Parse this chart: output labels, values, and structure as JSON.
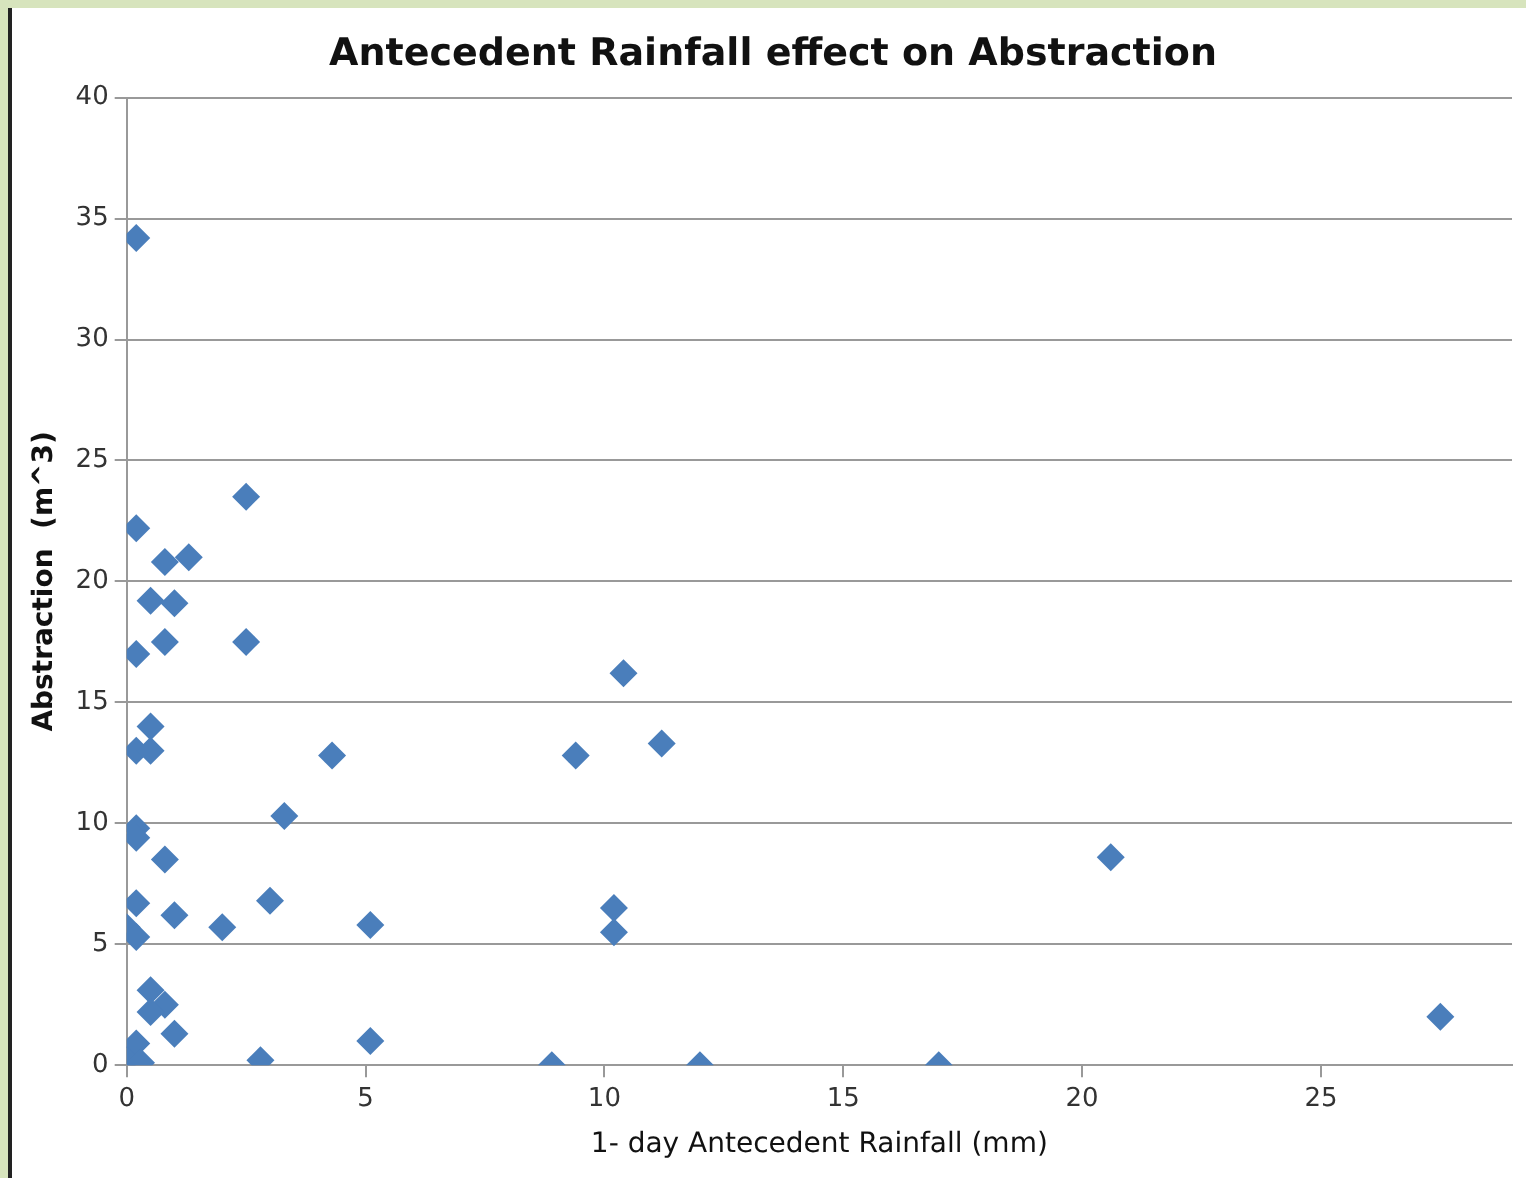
{
  "chart_data": {
    "type": "scatter",
    "title": "Antecedent Rainfall effect on Abstraction",
    "xlabel": "1- day Antecedent Rainfall (mm)",
    "ylabel": "Abstraction  (m^3)",
    "x": [
      0.2,
      0.2,
      2.5,
      0.5,
      0.8,
      1.0,
      1.3,
      0.2,
      0.8,
      2.5,
      0.5,
      0.2,
      0.5,
      4.3,
      3.3,
      0.2,
      0.2,
      0.8,
      0.2,
      1.0,
      3.0,
      0,
      0.2,
      2.0,
      5.1,
      0.5,
      0.8,
      0.5,
      1.0,
      0.2,
      0,
      0.3,
      2.8,
      5.1,
      8.9,
      12,
      17,
      20.6,
      27.5,
      9.4,
      10.4,
      11.2,
      10.2,
      10.2
    ],
    "series": [
      {
        "color": "#4a7ebb",
        "values": [
          34.2,
          22.2,
          23.5,
          19.2,
          20.8,
          19.1,
          21.0,
          17.0,
          17.5,
          17.5,
          14.0,
          13.0,
          13.0,
          12.8,
          10.3,
          9.8,
          9.4,
          8.5,
          6.7,
          6.2,
          6.8,
          5.7,
          5.3,
          5.7,
          5.8,
          3.1,
          2.5,
          2.2,
          1.3,
          0.9,
          0.2,
          0.1,
          0.2,
          1.0,
          0,
          0,
          0,
          8.6,
          2.0,
          12.8,
          16.2,
          13.3,
          6.5,
          5.5
        ]
      }
    ],
    "xlim": [
      0,
      29
    ],
    "xticks": [
      0,
      5,
      10,
      15,
      20,
      25
    ],
    "ylim": [
      0,
      40
    ],
    "yticks": [
      0,
      5,
      10,
      15,
      20,
      25,
      30,
      35,
      40
    ],
    "grid": "y",
    "marker": "diamond",
    "legend": false
  }
}
